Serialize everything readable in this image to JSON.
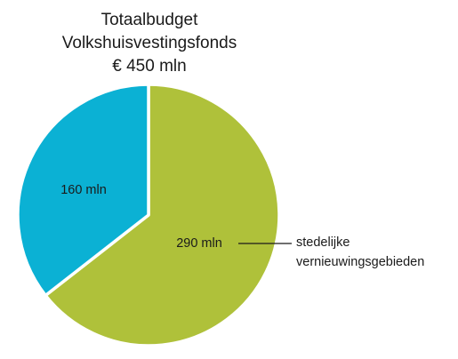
{
  "chart_data": {
    "type": "pie",
    "title_lines": [
      "Totaalbudget",
      "Volkshuisvestingsfonds",
      "€ 450 mln"
    ],
    "total": 450,
    "unit": "mln",
    "slices": [
      {
        "label": "290 mln",
        "value": 290,
        "color": "#afc13a",
        "annotation_lines": [
          "stedelijke",
          "vernieuwingsgebieden"
        ]
      },
      {
        "label": "160 mln",
        "value": 160,
        "color": "#0bb1d4"
      }
    ]
  }
}
